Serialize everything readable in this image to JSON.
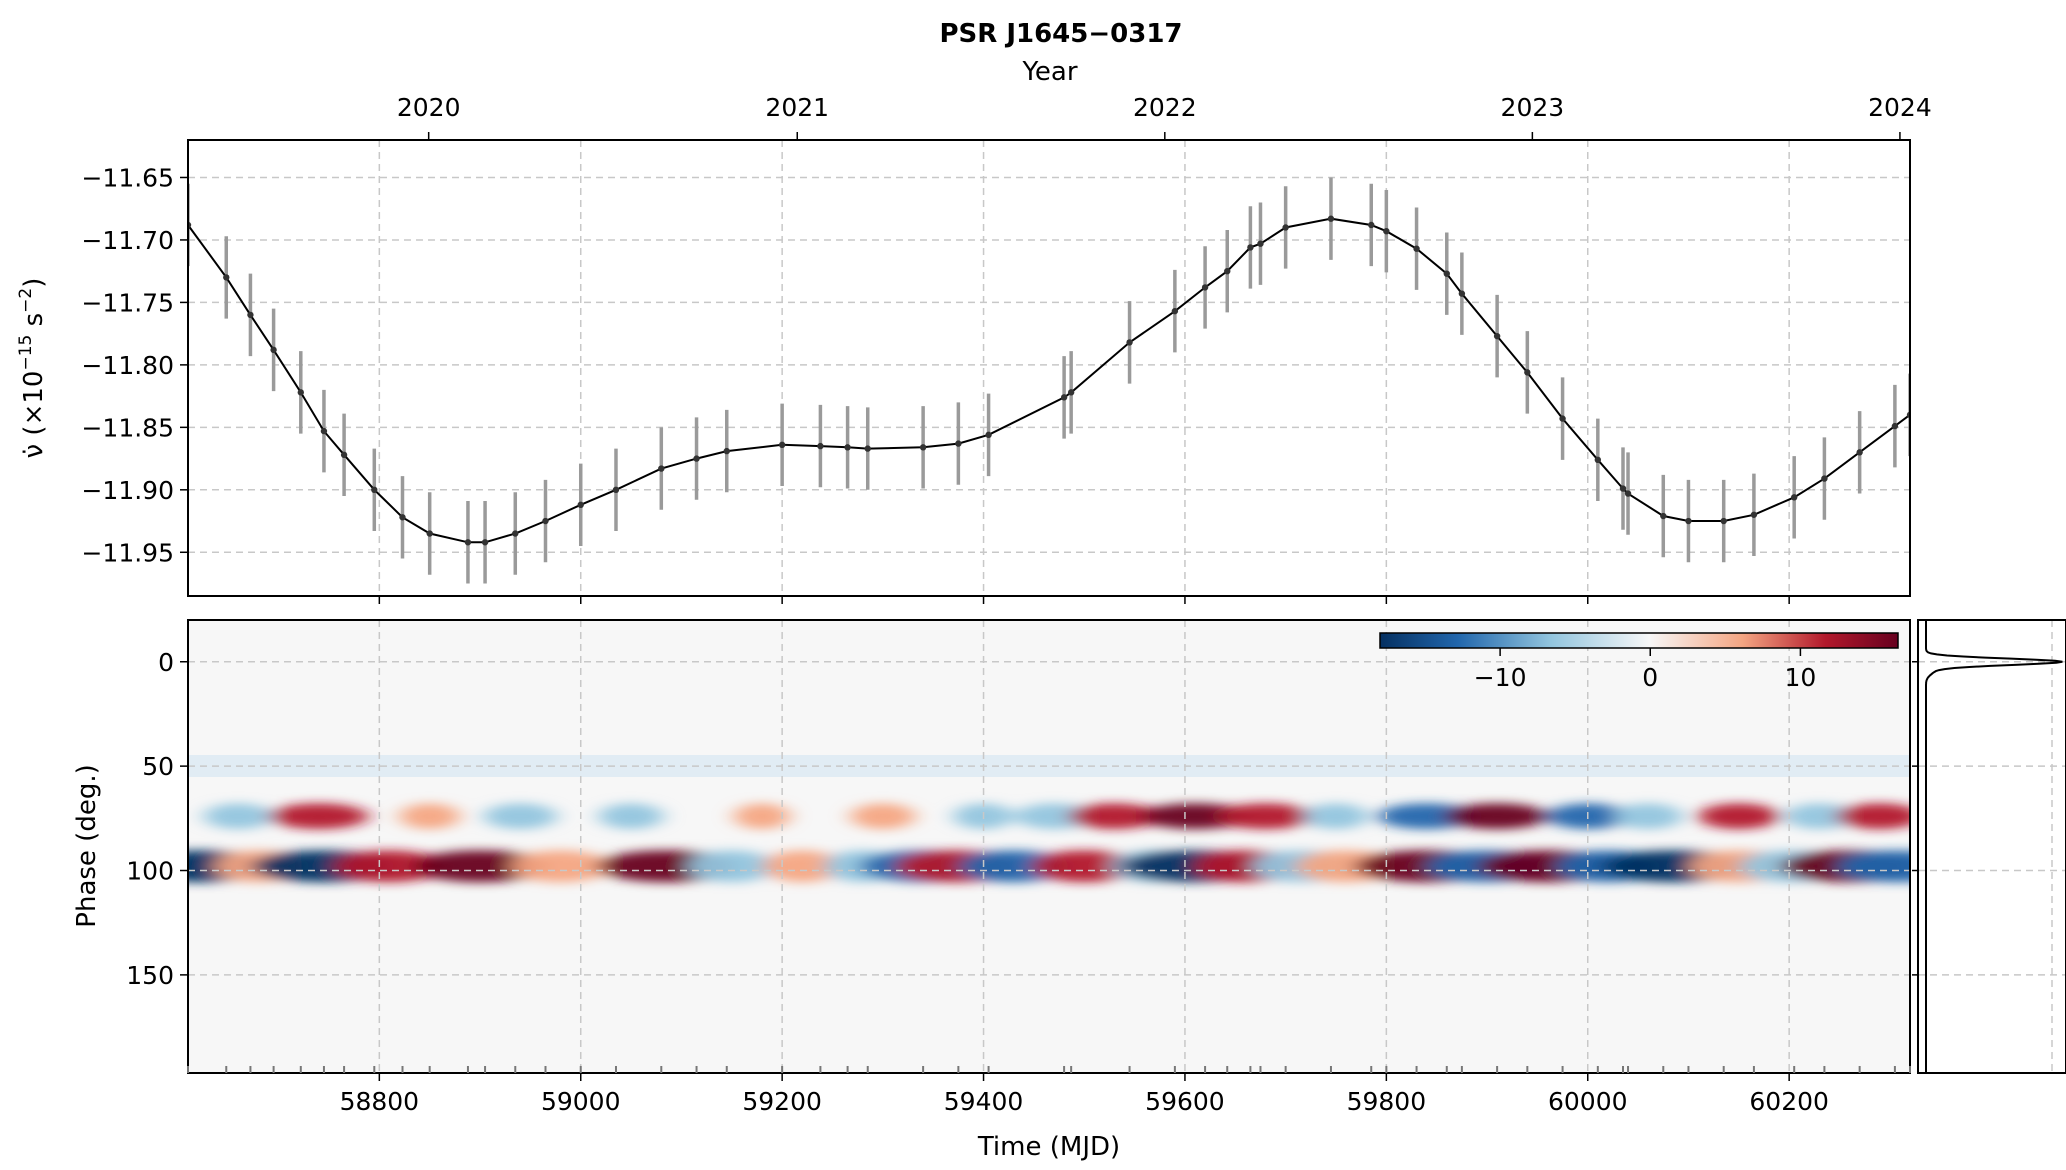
{
  "chart_data": [
    {
      "type": "line",
      "title": "PSR J1645−0317",
      "top_axis": {
        "label": "Year",
        "ticks": [
          {
            "mjd": 58849,
            "label": "2020"
          },
          {
            "mjd": 59215,
            "label": "2021"
          },
          {
            "mjd": 59580,
            "label": "2022"
          },
          {
            "mjd": 59945,
            "label": "2023"
          },
          {
            "mjd": 60310,
            "label": "2024"
          }
        ]
      },
      "xlabel": "Time (MJD)",
      "xlim": [
        58610,
        60320
      ],
      "ylabel_main": "ν̇ (×10",
      "ylabel_sup": "−15",
      "ylabel_unit": " s",
      "ylabel_unit_sup": "−2",
      "ylabel_close": ")",
      "ylim": [
        -11.985,
        -11.62
      ],
      "yticks": [
        -11.65,
        -11.7,
        -11.75,
        -11.8,
        -11.85,
        -11.9,
        -11.95
      ],
      "ytick_labels": [
        "−11.65",
        "−11.70",
        "−11.75",
        "−11.80",
        "−11.85",
        "−11.90",
        "−11.95"
      ],
      "xticks": [
        58800,
        59000,
        59200,
        59400,
        59600,
        59800,
        60000,
        60200
      ],
      "xtick_labels": [
        "58800",
        "59000",
        "59200",
        "59400",
        "59600",
        "59800",
        "60000",
        "60200"
      ],
      "grid": true,
      "error_half_width": 0.033,
      "x": [
        58610,
        58648,
        58672,
        58695,
        58722,
        58745,
        58765,
        58795,
        58823,
        58850,
        58888,
        58905,
        58935,
        58965,
        59000,
        59035,
        59080,
        59115,
        59145,
        59200,
        59238,
        59265,
        59285,
        59340,
        59375,
        59405,
        59480,
        59487,
        59545,
        59590,
        59620,
        59642,
        59665,
        59675,
        59700,
        59745,
        59785,
        59800,
        59830,
        59860,
        59875,
        59910,
        59940,
        59975,
        60010,
        60035,
        60040,
        60075,
        60100,
        60135,
        60165,
        60205,
        60235,
        60270,
        60305,
        60320
      ],
      "y": [
        -11.688,
        -11.73,
        -11.76,
        -11.788,
        -11.822,
        -11.853,
        -11.872,
        -11.9,
        -11.922,
        -11.935,
        -11.942,
        -11.942,
        -11.935,
        -11.925,
        -11.912,
        -11.9,
        -11.883,
        -11.875,
        -11.869,
        -11.864,
        -11.865,
        -11.866,
        -11.867,
        -11.866,
        -11.863,
        -11.856,
        -11.826,
        -11.822,
        -11.782,
        -11.757,
        -11.738,
        -11.725,
        -11.706,
        -11.703,
        -11.69,
        -11.683,
        -11.688,
        -11.693,
        -11.707,
        -11.727,
        -11.743,
        -11.777,
        -11.806,
        -11.843,
        -11.876,
        -11.899,
        -11.903,
        -11.921,
        -11.925,
        -11.925,
        -11.92,
        -11.906,
        -11.891,
        -11.87,
        -11.849,
        -11.84
      ]
    },
    {
      "type": "heatmap",
      "ylabel": "Phase (deg.)",
      "ylim": [
        -20,
        197
      ],
      "yticks": [
        0,
        50,
        100,
        150
      ],
      "ytick_labels": [
        "0",
        "50",
        "100",
        "150"
      ],
      "colorbar": {
        "range": [
          -18,
          16.5
        ],
        "ticks": [
          -10,
          0,
          10
        ],
        "tick_labels": [
          "−10",
          "0",
          "10"
        ],
        "colormap": "RdBu_r"
      },
      "colors": {
        "neg_strong": "#053061",
        "neg": "#2166ac",
        "neg_light": "#92c5de",
        "neutral": "#f7f7f7",
        "pos_light": "#f4a582",
        "pos": "#b2182b",
        "pos_strong": "#67001f"
      },
      "features": {
        "band_75": [
          {
            "x": 58660,
            "v": -6
          },
          {
            "x": 58740,
            "v": 13
          },
          {
            "x": 58850,
            "v": 4
          },
          {
            "x": 58940,
            "v": -7
          },
          {
            "x": 59050,
            "v": -5
          },
          {
            "x": 59180,
            "v": 3
          },
          {
            "x": 59300,
            "v": 5
          },
          {
            "x": 59400,
            "v": -4
          },
          {
            "x": 59470,
            "v": -8
          },
          {
            "x": 59530,
            "v": 11
          },
          {
            "x": 59610,
            "v": 15
          },
          {
            "x": 59680,
            "v": 12
          },
          {
            "x": 59750,
            "v": -5
          },
          {
            "x": 59840,
            "v": -13
          },
          {
            "x": 59910,
            "v": 14
          },
          {
            "x": 60000,
            "v": -9
          },
          {
            "x": 60060,
            "v": -6
          },
          {
            "x": 60150,
            "v": 9
          },
          {
            "x": 60230,
            "v": -6
          },
          {
            "x": 60290,
            "v": 10
          }
        ],
        "band_98": [
          {
            "x": 58620,
            "v": -14
          },
          {
            "x": 58680,
            "v": 6
          },
          {
            "x": 58745,
            "v": -16
          },
          {
            "x": 58810,
            "v": 10
          },
          {
            "x": 58900,
            "v": 14
          },
          {
            "x": 58980,
            "v": 8
          },
          {
            "x": 59085,
            "v": 15
          },
          {
            "x": 59150,
            "v": -6
          },
          {
            "x": 59220,
            "v": 4
          },
          {
            "x": 59280,
            "v": -4
          },
          {
            "x": 59340,
            "v": -13
          },
          {
            "x": 59375,
            "v": 13
          },
          {
            "x": 59430,
            "v": -10
          },
          {
            "x": 59500,
            "v": 9
          },
          {
            "x": 59570,
            "v": -6
          },
          {
            "x": 59610,
            "v": -17
          },
          {
            "x": 59660,
            "v": 9
          },
          {
            "x": 59715,
            "v": -8
          },
          {
            "x": 59760,
            "v": 8
          },
          {
            "x": 59840,
            "v": 16
          },
          {
            "x": 59900,
            "v": -12
          },
          {
            "x": 59960,
            "v": 15
          },
          {
            "x": 60020,
            "v": -9
          },
          {
            "x": 60085,
            "v": -16
          },
          {
            "x": 60150,
            "v": 8
          },
          {
            "x": 60200,
            "v": -8
          },
          {
            "x": 60260,
            "v": 15
          },
          {
            "x": 60310,
            "v": -13
          }
        ]
      }
    }
  ]
}
